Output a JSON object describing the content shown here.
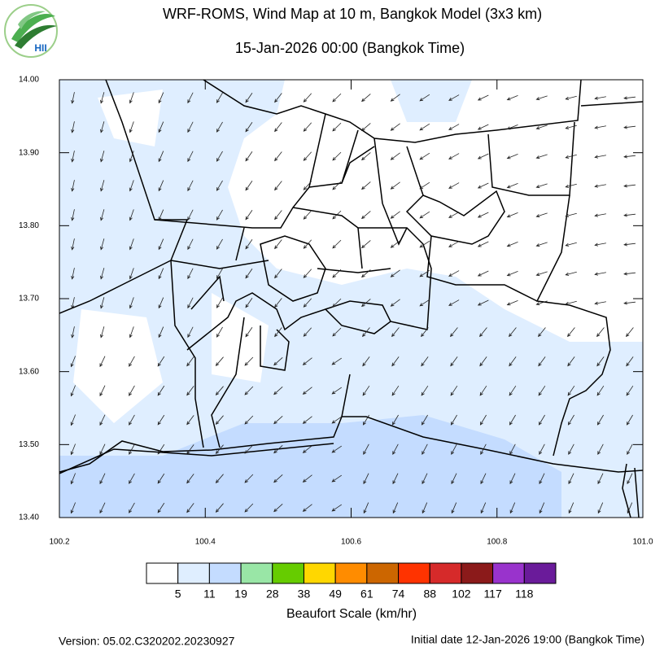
{
  "header": {
    "title": "WRF-ROMS, Wind Map at 10 m, Bangkok Model (3x3 km)",
    "subtitle": "15-Jan-2026 00:00 (Bangkok Time)",
    "logo": "HII"
  },
  "map": {
    "xlim": [
      100.2,
      101.0
    ],
    "ylim": [
      13.4,
      14.0
    ],
    "xticks": [
      100.2,
      100.4,
      100.6,
      100.8,
      {
        "value": 101.0,
        "label": "101.0"
      }
    ],
    "yticks": [
      {
        "value": 14.0,
        "label": "14.00"
      },
      {
        "value": 13.9,
        "label": "13.90"
      },
      {
        "value": 13.8,
        "label": "13.80"
      },
      {
        "value": 13.7,
        "label": "13.70"
      },
      {
        "value": 13.6,
        "label": "13.60"
      },
      {
        "value": 13.5,
        "label": "13.50"
      },
      {
        "value": 13.4,
        "label": "13.40"
      }
    ]
  },
  "legend": {
    "title": "Beaufort Scale (km/hr)",
    "levels": [
      5,
      11,
      19,
      28,
      38,
      49,
      61,
      74,
      88,
      102,
      117,
      118
    ],
    "colors": [
      "#ffffff",
      "#dfeeff",
      "#c4dcff",
      "#99e6a6",
      "#66cc00",
      "#ffd700",
      "#ff8c00",
      "#cc6600",
      "#ff3300",
      "#d62a2a",
      "#8b1a1a",
      "#9933cc",
      "#6a1b9a"
    ]
  },
  "footer": {
    "version": "Version: 05.02.C320202.20230927",
    "initial": "Initial date 12-Jan-2026 19:00 (Bangkok Time)"
  }
}
